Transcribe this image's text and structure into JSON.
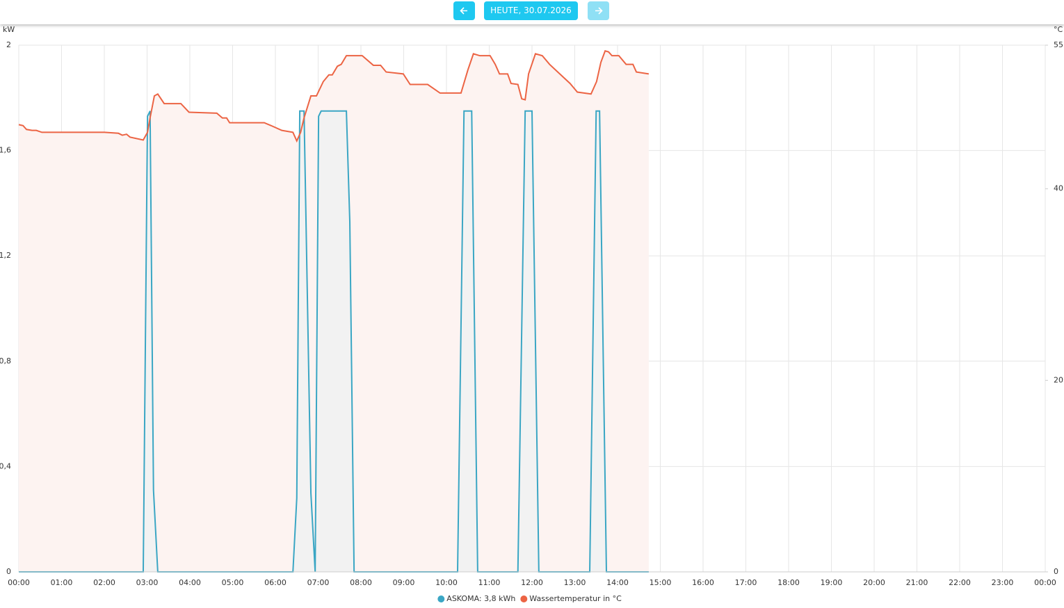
{
  "header": {
    "date_button": "HEUTE, 30.07.2026"
  },
  "chart_data": {
    "type": "line",
    "ylabel": "kW",
    "y2label": "°C",
    "xlim": [
      0,
      24
    ],
    "xticks": [
      {
        "value": 0,
        "label": "00:00"
      },
      {
        "value": 1,
        "label": "01:00"
      },
      {
        "value": 2,
        "label": "02:00"
      },
      {
        "value": 3,
        "label": "03:00"
      },
      {
        "value": 4,
        "label": "04:00"
      },
      {
        "value": 5,
        "label": "05:00"
      },
      {
        "value": 6,
        "label": "06:00"
      },
      {
        "value": 7,
        "label": "07:00"
      },
      {
        "value": 8,
        "label": "08:00"
      },
      {
        "value": 9,
        "label": "09:00"
      },
      {
        "value": 10,
        "label": "10:00"
      },
      {
        "value": 11,
        "label": "11:00"
      },
      {
        "value": 12,
        "label": "12:00"
      },
      {
        "value": 13,
        "label": "13:00"
      },
      {
        "value": 14,
        "label": "14:00"
      },
      {
        "value": 15,
        "label": "15:00"
      },
      {
        "value": 16,
        "label": "16:00"
      },
      {
        "value": 17,
        "label": "17:00"
      },
      {
        "value": 18,
        "label": "18:00"
      },
      {
        "value": 19,
        "label": "19:00"
      },
      {
        "value": 20,
        "label": "20:00"
      },
      {
        "value": 21,
        "label": "21:00"
      },
      {
        "value": 22,
        "label": "22:00"
      },
      {
        "value": 23,
        "label": "23:00"
      },
      {
        "value": 24,
        "label": "00:00"
      }
    ],
    "ylim": [
      0,
      2
    ],
    "yticks": [
      0,
      {
        "value": 0.4,
        "label": "0,4"
      },
      {
        "value": 0.8,
        "label": "0,8"
      },
      {
        "value": 1.2,
        "label": "1,2"
      },
      {
        "value": 1.6,
        "label": "1,6"
      },
      2
    ],
    "y2lim": [
      0,
      55
    ],
    "y2ticks": [
      0,
      20,
      40,
      55
    ],
    "grid": true,
    "series": [
      {
        "name": "ASKOMA: 3,8 kWh",
        "color": "#3aa6c4",
        "fill": "#f2f2f2",
        "x": [
          0,
          2.91,
          3.01,
          3.07,
          3.15,
          3.25,
          6.41,
          6.5,
          6.57,
          6.67,
          6.83,
          6.93,
          7.01,
          7.07,
          7.66,
          7.74,
          7.84,
          10.26,
          10.41,
          10.59,
          10.73,
          11.67,
          11.84,
          12.0,
          12.16,
          13.35,
          13.5,
          13.58,
          13.74,
          14.73
        ],
        "values": [
          0,
          0,
          1.73,
          1.75,
          0.31,
          0,
          0,
          0.28,
          1.75,
          1.75,
          0.3,
          0,
          1.73,
          1.75,
          1.75,
          1.33,
          0,
          0,
          1.75,
          1.75,
          0,
          0,
          1.75,
          1.75,
          0,
          0,
          1.75,
          1.75,
          0,
          0
        ]
      },
      {
        "name": "Wassertemperatur in °C",
        "color": "#ec6444",
        "fill": "#fdf3f1",
        "axis": "y2",
        "x": [
          0,
          0.1,
          0.18,
          0.31,
          0.41,
          0.54,
          2.0,
          2.33,
          2.42,
          2.52,
          2.6,
          2.91,
          3.01,
          3.07,
          3.17,
          3.25,
          3.4,
          3.79,
          3.98,
          4.63,
          4.76,
          4.86,
          4.93,
          5.74,
          5.9,
          6.15,
          6.41,
          6.5,
          6.59,
          6.67,
          6.83,
          6.96,
          7.12,
          7.25,
          7.33,
          7.45,
          7.54,
          7.66,
          8.03,
          8.29,
          8.46,
          8.59,
          8.99,
          9.15,
          9.56,
          9.85,
          10.34,
          10.5,
          10.63,
          10.78,
          11.02,
          11.14,
          11.24,
          11.43,
          11.51,
          11.67,
          11.76,
          11.84,
          11.92,
          12.08,
          12.24,
          12.41,
          12.65,
          12.89,
          13.06,
          13.38,
          13.51,
          13.61,
          13.71,
          13.79,
          13.87,
          14.03,
          14.2,
          14.36,
          14.44,
          14.73
        ],
        "values": [
          46.7,
          46.6,
          46.2,
          46.1,
          46.1,
          45.9,
          45.9,
          45.8,
          45.6,
          45.7,
          45.4,
          45.1,
          45.9,
          47.4,
          49.7,
          49.9,
          48.9,
          48.9,
          48.0,
          47.9,
          47.4,
          47.4,
          46.9,
          46.9,
          46.6,
          46.1,
          45.9,
          45.0,
          45.9,
          47.4,
          49.7,
          49.7,
          51.2,
          51.9,
          51.9,
          52.8,
          53.0,
          53.9,
          53.9,
          52.9,
          52.9,
          52.2,
          52.0,
          50.9,
          50.9,
          50.0,
          50.0,
          52.4,
          54.1,
          53.9,
          53.9,
          53.0,
          52.0,
          52.0,
          51.0,
          50.9,
          49.4,
          49.3,
          52.0,
          54.1,
          53.9,
          53.0,
          52.0,
          51.0,
          50.1,
          49.9,
          51.2,
          53.2,
          54.4,
          54.3,
          53.9,
          53.9,
          53.0,
          53.0,
          52.2,
          52.0
        ]
      }
    ]
  }
}
